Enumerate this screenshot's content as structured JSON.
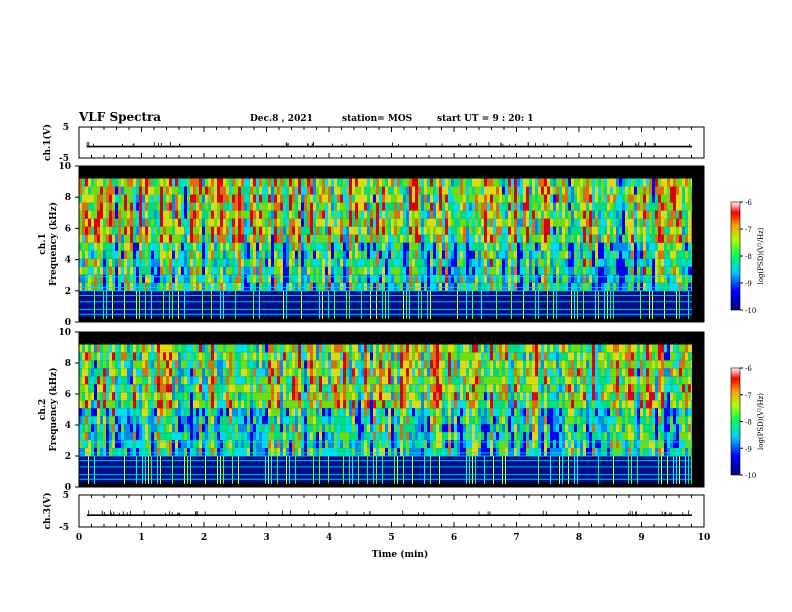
{
  "header": {
    "title": "VLF Spectra",
    "date": "Dec.8 , 2021",
    "station": "station= MOS",
    "start_ut": "start UT = 9 : 20: 1"
  },
  "chart_data": [
    {
      "type": "line",
      "name": "ch1-waveform",
      "ylabel": "ch.1(V)",
      "ylim": [
        -5,
        5
      ],
      "yticks": [
        "5",
        "-5"
      ],
      "xlim": [
        0,
        10
      ],
      "line_level": -1.3
    },
    {
      "type": "heatmap",
      "name": "ch1-spectrogram",
      "ylabel_lines": [
        "ch.1",
        "Frequency (kHz)"
      ],
      "ylim": [
        0,
        10
      ],
      "yticks": [
        "0",
        "2",
        "4",
        "6",
        "8",
        "10"
      ],
      "xlim": [
        0,
        10
      ],
      "colorbar": {
        "label": "log(PSD)(V²/Hz)",
        "ticks": [
          "-6",
          "-7",
          "-8",
          "-9",
          "-10"
        ],
        "range": [
          -10,
          -6
        ]
      }
    },
    {
      "type": "heatmap",
      "name": "ch2-spectrogram",
      "ylabel_lines": [
        "ch.2",
        "Frequency (kHz)"
      ],
      "ylim": [
        0,
        10
      ],
      "yticks": [
        "0",
        "2",
        "4",
        "6",
        "8",
        "10"
      ],
      "xlim": [
        0,
        10
      ],
      "colorbar": {
        "label": "log(PSD)(V²/Hz)",
        "ticks": [
          "-6",
          "-7",
          "-8",
          "-9",
          "-10"
        ],
        "range": [
          -10,
          -6
        ]
      }
    },
    {
      "type": "line",
      "name": "ch3-waveform",
      "ylabel": "ch.3(V)",
      "ylim": [
        -5,
        5
      ],
      "yticks": [
        "5",
        "-5"
      ],
      "xlim": [
        0,
        10
      ],
      "line_level": -1.3
    }
  ],
  "xaxis": {
    "label": "Time (min)",
    "ticks": [
      "0",
      "1",
      "2",
      "3",
      "4",
      "5",
      "6",
      "7",
      "8",
      "9",
      "10"
    ]
  },
  "colors": {
    "colormap": [
      "#000080",
      "#0000ff",
      "#00a0ff",
      "#00ffff",
      "#00ff80",
      "#80ff00",
      "#ffff00",
      "#ff8000",
      "#ff0000",
      "#ffffff"
    ],
    "background": "#000000"
  }
}
